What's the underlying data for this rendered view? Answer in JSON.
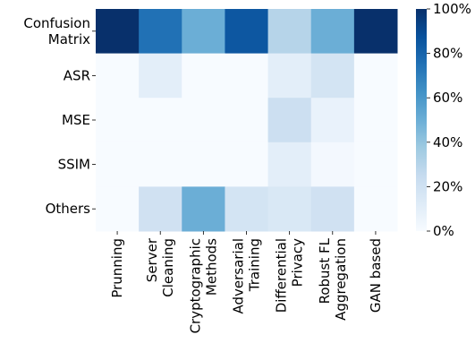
{
  "chart_data": {
    "type": "heatmap",
    "title": "",
    "xlabel": "",
    "ylabel": "",
    "columns": [
      [
        "Prunning"
      ],
      [
        "Server",
        "Cleaning"
      ],
      [
        "Cryptographic",
        "Methods"
      ],
      [
        "Adversarial",
        "Training"
      ],
      [
        "Differential",
        "Privacy"
      ],
      [
        "Robust FL",
        "Aggregation"
      ],
      [
        "GAN based"
      ]
    ],
    "rows": [
      [
        "Confusion",
        "Matrix"
      ],
      [
        "ASR"
      ],
      [
        "MSE"
      ],
      [
        "SSIM"
      ],
      [
        "Others"
      ]
    ],
    "values": [
      [
        100,
        75,
        50,
        85,
        30,
        50,
        100
      ],
      [
        0,
        10,
        0,
        0,
        10,
        18,
        0
      ],
      [
        0,
        0,
        0,
        0,
        22,
        7,
        0
      ],
      [
        0,
        0,
        0,
        0,
        10,
        2,
        0
      ],
      [
        0,
        20,
        50,
        18,
        15,
        20,
        0
      ]
    ],
    "colorbar": {
      "min": 0,
      "max": 100,
      "ticks": [
        "0%",
        "20%",
        "40%",
        "60%",
        "80%",
        "100%"
      ],
      "colormap": "Blues"
    }
  }
}
